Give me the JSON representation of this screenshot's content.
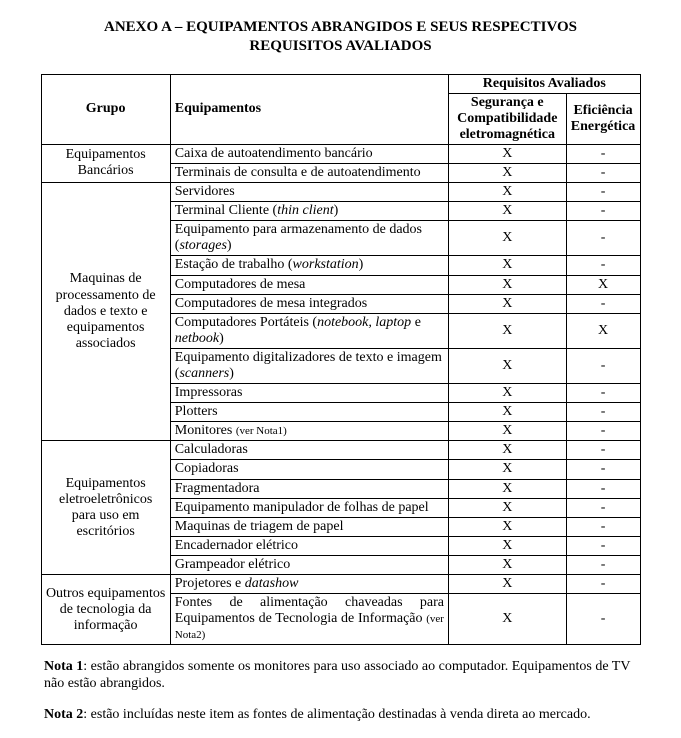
{
  "title": "ANEXO A – EQUIPAMENTOS ABRANGIDOS E SEUS RESPECTIVOS REQUISITOS AVALIADOS",
  "headers": {
    "grupo": "Grupo",
    "equipamentos": "Equipamentos",
    "requisitos": "Requisitos Avaliados",
    "seg": "Segurança e Compatibilidade eletromagnética",
    "efi": "Eficiência Energética"
  },
  "groups": [
    {
      "name": "Equipamentos Bancários",
      "rows": [
        {
          "equip": "Caixa de autoatendimento bancário",
          "seg": "X",
          "efi": "-"
        },
        {
          "equip": "Terminais de consulta e de autoatendimento",
          "seg": "X",
          "efi": "-"
        }
      ]
    },
    {
      "name": "Maquinas de processamento de dados  e texto e equipamentos associados",
      "rows": [
        {
          "equip": "Servidores",
          "seg": "X",
          "efi": "-"
        },
        {
          "equip_html": "Terminal Cliente (<span class=\"ital\">thin client</span>)",
          "seg": "X",
          "efi": "-"
        },
        {
          "equip_html": "Equipamento para armazenamento de dados (<span class=\"ital\">storages</span>)",
          "seg": "X",
          "efi": "-"
        },
        {
          "equip_html": "Estação de trabalho (<span class=\"ital\">workstation</span>)",
          "seg": "X",
          "efi": "-"
        },
        {
          "equip": "Computadores de mesa",
          "seg": "X",
          "efi": "X"
        },
        {
          "equip": "Computadores de mesa integrados",
          "seg": "X",
          "efi": "-"
        },
        {
          "equip_html": "Computadores Portáteis (<span class=\"ital\">notebook, laptop</span> e <span class=\"ital\">netbook</span>)",
          "seg": "X",
          "efi": "X"
        },
        {
          "equip_html": "Equipamento digitalizadores de texto e imagem (<span class=\"ital\">scanners</span>)",
          "seg": "X",
          "efi": "-"
        },
        {
          "equip": "Impressoras",
          "seg": "X",
          "efi": "-"
        },
        {
          "equip": "Plotters",
          "seg": "X",
          "efi": "-"
        },
        {
          "equip_html": "Monitores <span class=\"small\">(ver Nota1)</span>",
          "seg": "X",
          "efi": "-"
        }
      ]
    },
    {
      "name": "Equipamentos eletroeletrônicos para uso em escritórios",
      "rows": [
        {
          "equip": "Calculadoras",
          "seg": "X",
          "efi": "-"
        },
        {
          "equip": "Copiadoras",
          "seg": "X",
          "efi": "-"
        },
        {
          "equip": "Fragmentadora",
          "seg": "X",
          "efi": "-"
        },
        {
          "equip": "Equipamento manipulador de folhas de papel",
          "seg": "X",
          "efi": "-"
        },
        {
          "equip": "Maquinas de triagem de papel",
          "seg": "X",
          "efi": "-"
        },
        {
          "equip": "Encadernador elétrico",
          "seg": "X",
          "efi": "-"
        },
        {
          "equip": "Grampeador elétrico",
          "seg": "X",
          "efi": "-"
        }
      ]
    },
    {
      "name": "Outros equipamentos de tecnologia da informação",
      "rows": [
        {
          "equip_html": "Projetores e <span class=\"ital\">datashow</span>",
          "seg": "X",
          "efi": "-"
        },
        {
          "equip_html": "<div class=\"justify\">Fontes de alimentação chaveadas para Equipamentos de Tecnologia de Informação <span class=\"small\">(ver Nota2)</span></div>",
          "seg": "X",
          "efi": "-"
        }
      ]
    }
  ],
  "notes": {
    "n1_label": "Nota 1",
    "n1_text": ": estão abrangidos somente os monitores para uso associado ao computador. Equipamentos de TV não estão abrangidos.",
    "n2_label": "Nota 2",
    "n2_text": ": estão incluídas neste item as fontes de alimentação destinadas à venda direta ao mercado."
  }
}
